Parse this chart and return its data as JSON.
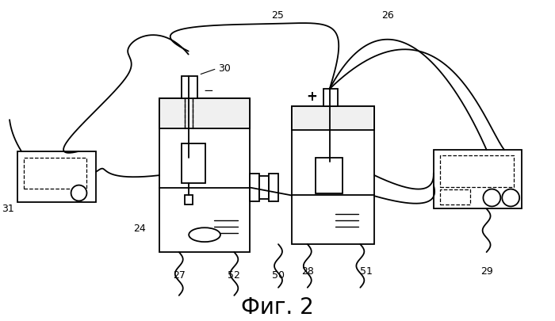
{
  "title": "Фиг. 2",
  "title_fontsize": 20,
  "bg_color": "#ffffff",
  "figsize": [
    7.0,
    4.05
  ],
  "dpi": 100
}
